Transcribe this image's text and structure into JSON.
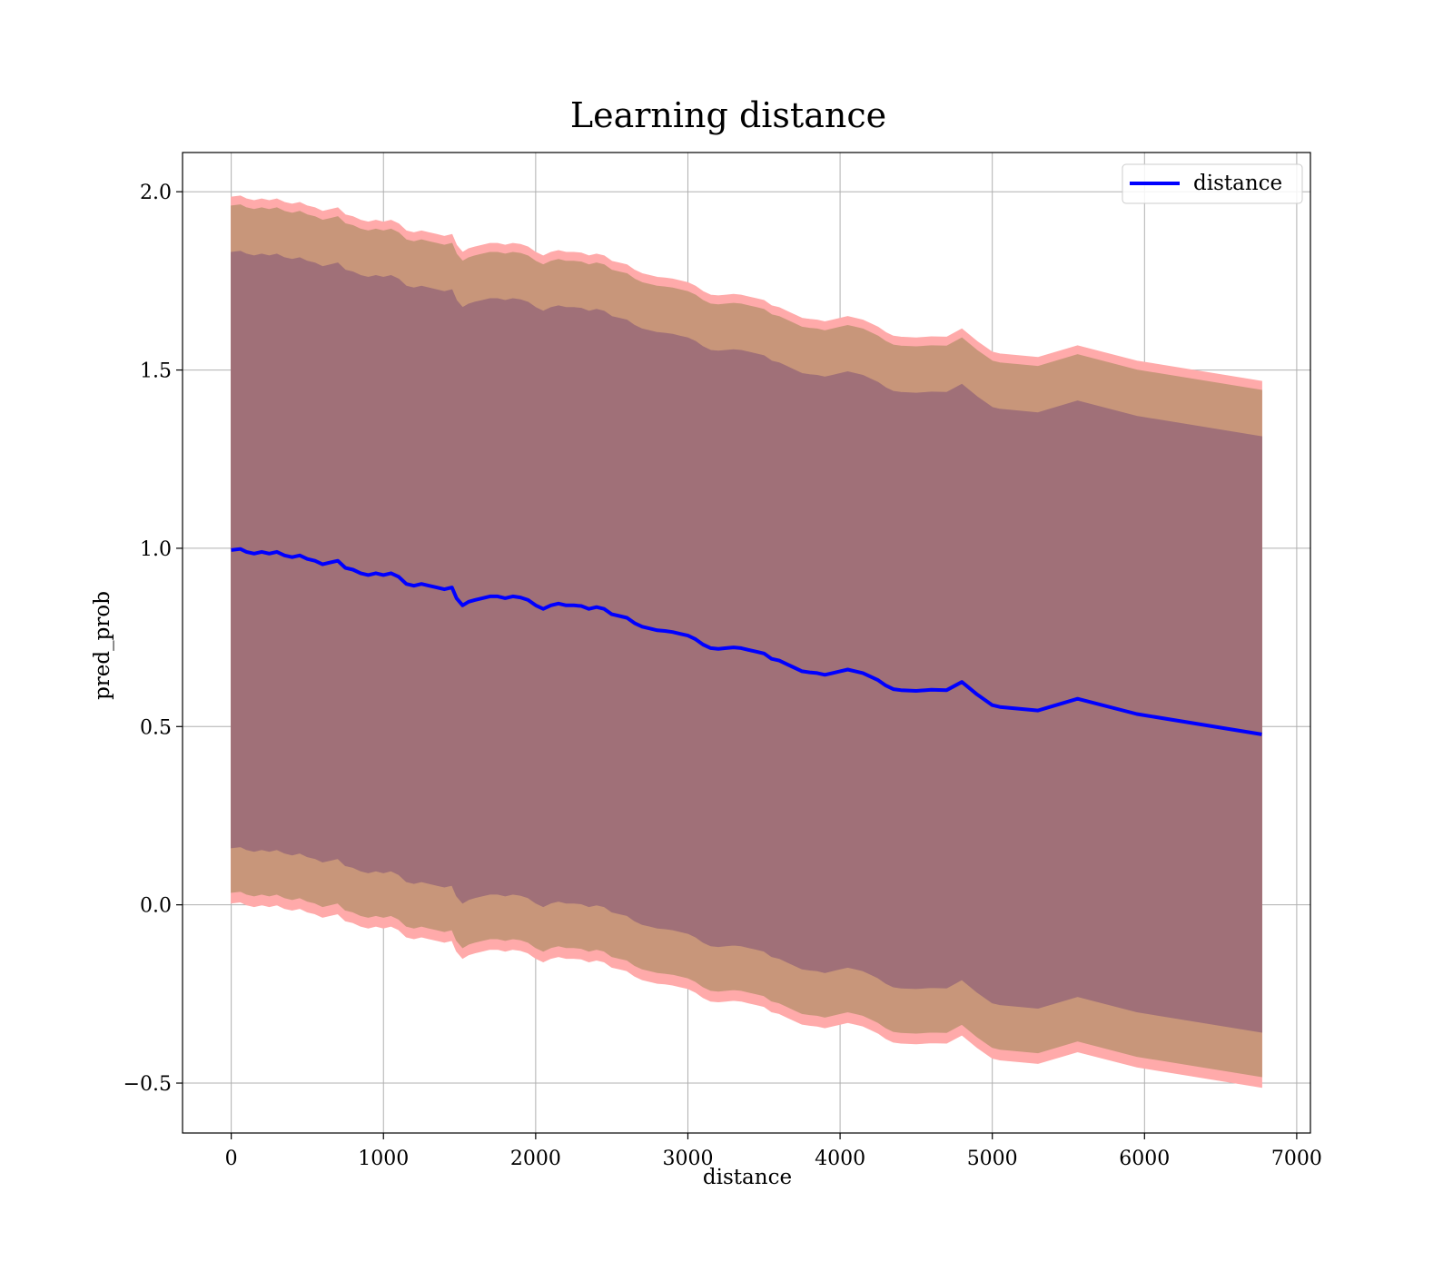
{
  "chart_data": {
    "type": "line",
    "title": "Learning distance",
    "xlabel": "distance",
    "ylabel": "pred_prob",
    "xlim": [
      -320,
      7090
    ],
    "ylim": [
      -0.64,
      2.11
    ],
    "xticks": [
      0,
      1000,
      2000,
      3000,
      4000,
      5000,
      6000,
      7000
    ],
    "yticks": [
      -0.5,
      0.0,
      0.5,
      1.0,
      1.5,
      2.0
    ],
    "ytick_labels": [
      "−0.5",
      "0.0",
      "0.5",
      "1.0",
      "1.5",
      "2.0"
    ],
    "grid": true,
    "legend_position": "upper right",
    "legend": [
      "distance"
    ],
    "colors": {
      "line": "#0000ff",
      "band_outer": "#ffaaaa",
      "band_middle": "#c8967a",
      "band_inner": "#a07078",
      "grid": "#b0b0b0"
    },
    "series": [
      {
        "name": "distance",
        "x": [
          0,
          60,
          100,
          150,
          200,
          250,
          300,
          350,
          400,
          450,
          500,
          550,
          600,
          650,
          700,
          750,
          800,
          850,
          900,
          950,
          1000,
          1050,
          1100,
          1150,
          1200,
          1250,
          1300,
          1350,
          1400,
          1450,
          1480,
          1520,
          1560,
          1600,
          1650,
          1700,
          1750,
          1800,
          1850,
          1900,
          1950,
          2000,
          2050,
          2100,
          2150,
          2200,
          2250,
          2300,
          2350,
          2400,
          2450,
          2500,
          2550,
          2600,
          2650,
          2700,
          2750,
          2800,
          2850,
          2900,
          2950,
          3000,
          3050,
          3100,
          3150,
          3200,
          3250,
          3300,
          3350,
          3400,
          3450,
          3500,
          3550,
          3600,
          3650,
          3700,
          3750,
          3800,
          3850,
          3900,
          3950,
          4000,
          4050,
          4100,
          4150,
          4200,
          4250,
          4300,
          4350,
          4400,
          4500,
          4600,
          4700,
          4800,
          4900,
          5000,
          5050,
          5300,
          5560,
          5950,
          6770
        ],
        "y": [
          0.995,
          0.998,
          0.99,
          0.985,
          0.99,
          0.985,
          0.99,
          0.98,
          0.975,
          0.98,
          0.97,
          0.965,
          0.955,
          0.96,
          0.965,
          0.945,
          0.94,
          0.93,
          0.925,
          0.93,
          0.925,
          0.93,
          0.92,
          0.9,
          0.895,
          0.9,
          0.895,
          0.89,
          0.885,
          0.89,
          0.86,
          0.84,
          0.85,
          0.855,
          0.86,
          0.865,
          0.865,
          0.86,
          0.865,
          0.862,
          0.855,
          0.84,
          0.83,
          0.84,
          0.845,
          0.84,
          0.84,
          0.838,
          0.83,
          0.835,
          0.83,
          0.815,
          0.81,
          0.805,
          0.79,
          0.78,
          0.775,
          0.77,
          0.768,
          0.765,
          0.76,
          0.755,
          0.745,
          0.73,
          0.72,
          0.718,
          0.72,
          0.722,
          0.72,
          0.715,
          0.71,
          0.705,
          0.69,
          0.685,
          0.675,
          0.665,
          0.655,
          0.652,
          0.65,
          0.645,
          0.65,
          0.655,
          0.66,
          0.655,
          0.65,
          0.64,
          0.63,
          0.615,
          0.605,
          0.602,
          0.6,
          0.603,
          0.602,
          0.625,
          0.59,
          0.56,
          0.555,
          0.545,
          0.578,
          0.535,
          0.478
        ]
      }
    ],
    "bands": [
      {
        "name": "outer",
        "lower_offset": -0.99,
        "upper_offset": 0.99
      },
      {
        "name": "middle",
        "lower_offset": -0.96,
        "upper_offset": 0.965
      },
      {
        "name": "inner",
        "lower_offset": -0.835,
        "upper_offset": 0.835
      }
    ]
  }
}
